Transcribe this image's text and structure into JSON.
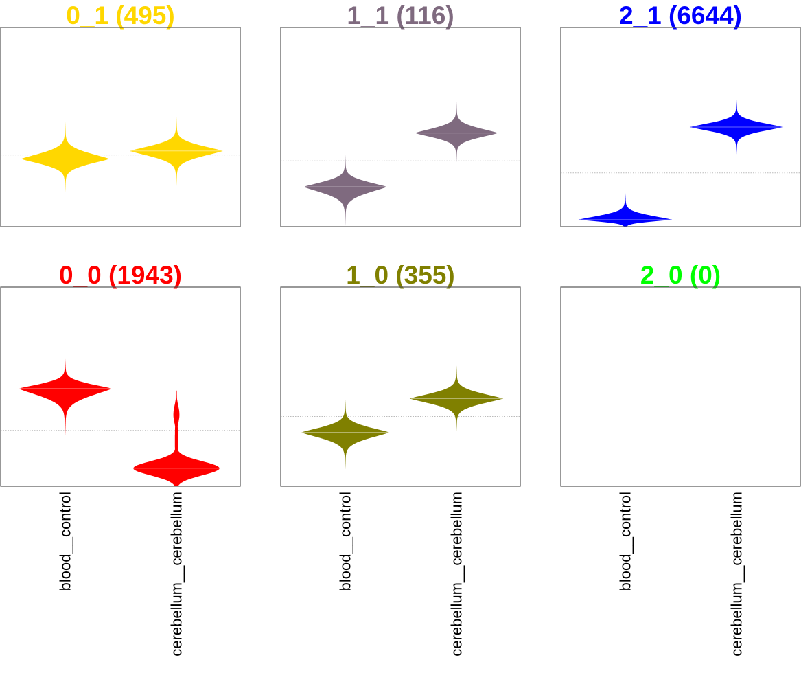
{
  "chart_data": {
    "type": "violin",
    "layout": {
      "rows": 2,
      "cols": 3
    },
    "categories": [
      "blood__control",
      "cerebellum__cerebellum"
    ],
    "panels": [
      {
        "title": "0_1 (495)",
        "color": "#FFD700",
        "ylim": [
          0,
          1
        ],
        "reference": 0.36,
        "violins": [
          {
            "category": "blood__control",
            "center": 0.34,
            "lo": 0.17,
            "hi": 0.53,
            "halfwidth": 0.18,
            "shape": "single"
          },
          {
            "category": "cerebellum__cerebellum",
            "center": 0.38,
            "lo": 0.2,
            "hi": 0.55,
            "halfwidth": 0.19,
            "shape": "single"
          }
        ]
      },
      {
        "title": "1_1 (116)",
        "color": "#7F6A7F",
        "ylim": [
          0,
          1
        ],
        "reference": 0.33,
        "violins": [
          {
            "category": "blood__control",
            "center": 0.2,
            "lo": 0.0,
            "hi": 0.36,
            "halfwidth": 0.17,
            "shape": "single"
          },
          {
            "category": "cerebellum__cerebellum",
            "center": 0.47,
            "lo": 0.32,
            "hi": 0.63,
            "halfwidth": 0.17,
            "shape": "single"
          }
        ]
      },
      {
        "title": "2_1 (6644)",
        "color": "#0000FF",
        "ylim": [
          0,
          1
        ],
        "reference": 0.27,
        "violins": [
          {
            "category": "blood__control",
            "center": 0.035,
            "lo": -0.03,
            "hi": 0.17,
            "halfwidth": 0.19,
            "shape": "single"
          },
          {
            "category": "cerebellum__cerebellum",
            "center": 0.5,
            "lo": 0.36,
            "hi": 0.64,
            "halfwidth": 0.19,
            "shape": "single"
          }
        ]
      },
      {
        "title": "0_0 (1943)",
        "color": "#FF0000",
        "ylim": [
          0,
          1
        ],
        "reference": 0.28,
        "violins": [
          {
            "category": "blood__control",
            "center": 0.49,
            "lo": 0.25,
            "hi": 0.64,
            "halfwidth": 0.19,
            "shape": "single"
          },
          {
            "category": "cerebellum__cerebellum",
            "center": 0.09,
            "lo": -0.02,
            "hi": 0.48,
            "halfwidth": 0.18,
            "shape": "bimodal"
          }
        ]
      },
      {
        "title": "1_0 (355)",
        "color": "#808000",
        "ylim": [
          0,
          1
        ],
        "reference": 0.35,
        "violins": [
          {
            "category": "blood__control",
            "center": 0.27,
            "lo": 0.08,
            "hi": 0.44,
            "halfwidth": 0.18,
            "shape": "single"
          },
          {
            "category": "cerebellum__cerebellum",
            "center": 0.44,
            "lo": 0.27,
            "hi": 0.61,
            "halfwidth": 0.19,
            "shape": "single"
          }
        ]
      },
      {
        "title": "2_0 (0)",
        "color": "#00FF00",
        "ylim": [
          0,
          1
        ],
        "reference": null,
        "violins": []
      }
    ]
  }
}
